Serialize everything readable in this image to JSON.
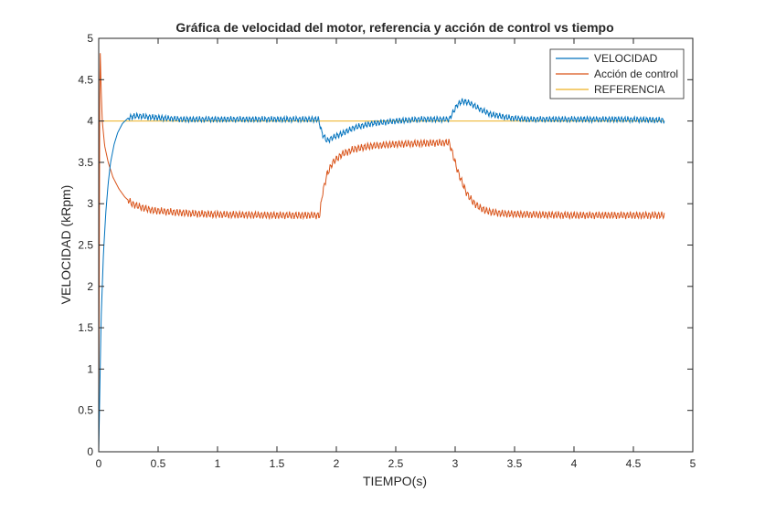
{
  "chart_data": {
    "type": "line",
    "title": "Gráfica de velocidad del motor, referencia y acción de control vs tiempo",
    "xlabel": "TIEMPO(s)",
    "ylabel": "VELOCIDAD (kRpm)",
    "xlim": [
      0,
      5
    ],
    "ylim": [
      0,
      5
    ],
    "xticks": [
      0,
      0.5,
      1,
      1.5,
      2,
      2.5,
      3,
      3.5,
      4,
      4.5,
      5
    ],
    "xtick_labels": [
      "0",
      "0.5",
      "1",
      "1.5",
      "2",
      "2.5",
      "3",
      "3.5",
      "4",
      "4.5",
      "5"
    ],
    "yticks": [
      0,
      0.5,
      1,
      1.5,
      2,
      2.5,
      3,
      3.5,
      4,
      4.5,
      5
    ],
    "ytick_labels": [
      "0",
      "0.5",
      "1",
      "1.5",
      "2",
      "2.5",
      "3",
      "3.5",
      "4",
      "4.5",
      "5"
    ],
    "grid": false,
    "legend_position": "top-right",
    "series": [
      {
        "name": "VELOCIDAD",
        "color": "#0072BD",
        "x": [
          0,
          0.01,
          0.02,
          0.04,
          0.06,
          0.08,
          0.1,
          0.13,
          0.16,
          0.2,
          0.25,
          0.3,
          0.35,
          0.4,
          0.5,
          0.7,
          1.0,
          1.3,
          1.6,
          1.85,
          1.88,
          1.92,
          1.97,
          2.05,
          2.15,
          2.3,
          2.5,
          2.7,
          2.9,
          2.95,
          2.98,
          3.02,
          3.06,
          3.12,
          3.2,
          3.3,
          3.45,
          3.6,
          4.0,
          4.4,
          4.76
        ],
        "y": [
          0,
          0.8,
          1.6,
          2.4,
          2.9,
          3.25,
          3.5,
          3.72,
          3.86,
          3.97,
          4.04,
          4.06,
          4.06,
          4.05,
          4.04,
          4.02,
          4.02,
          4.02,
          4.02,
          4.02,
          3.85,
          3.76,
          3.8,
          3.85,
          3.92,
          3.97,
          4.0,
          4.02,
          4.02,
          4.02,
          4.1,
          4.2,
          4.24,
          4.22,
          4.15,
          4.08,
          4.04,
          4.02,
          4.02,
          4.02,
          4.01
        ]
      },
      {
        "name": "Acción de control",
        "color": "#D95319",
        "x": [
          0,
          0.01,
          0.02,
          0.03,
          0.05,
          0.08,
          0.12,
          0.17,
          0.22,
          0.28,
          0.35,
          0.45,
          0.6,
          0.8,
          1.0,
          1.5,
          1.86,
          1.88,
          1.92,
          1.97,
          2.05,
          2.15,
          2.3,
          2.5,
          2.7,
          2.95,
          2.98,
          3.02,
          3.06,
          3.1,
          3.15,
          3.2,
          3.25,
          3.3,
          3.4,
          3.6,
          4.0,
          4.4,
          4.76
        ],
        "y": [
          0,
          5.0,
          4.4,
          4.0,
          3.7,
          3.5,
          3.32,
          3.18,
          3.08,
          3.0,
          2.96,
          2.92,
          2.9,
          2.88,
          2.87,
          2.86,
          2.86,
          3.1,
          3.35,
          3.5,
          3.6,
          3.66,
          3.7,
          3.72,
          3.73,
          3.74,
          3.6,
          3.4,
          3.25,
          3.12,
          3.02,
          2.96,
          2.92,
          2.9,
          2.88,
          2.87,
          2.86,
          2.86,
          2.86
        ]
      },
      {
        "name": "REFERENCIA",
        "color": "#EDB120",
        "x": [
          0,
          0.001,
          4.76
        ],
        "y": [
          0,
          4.0,
          4.0
        ]
      }
    ]
  }
}
